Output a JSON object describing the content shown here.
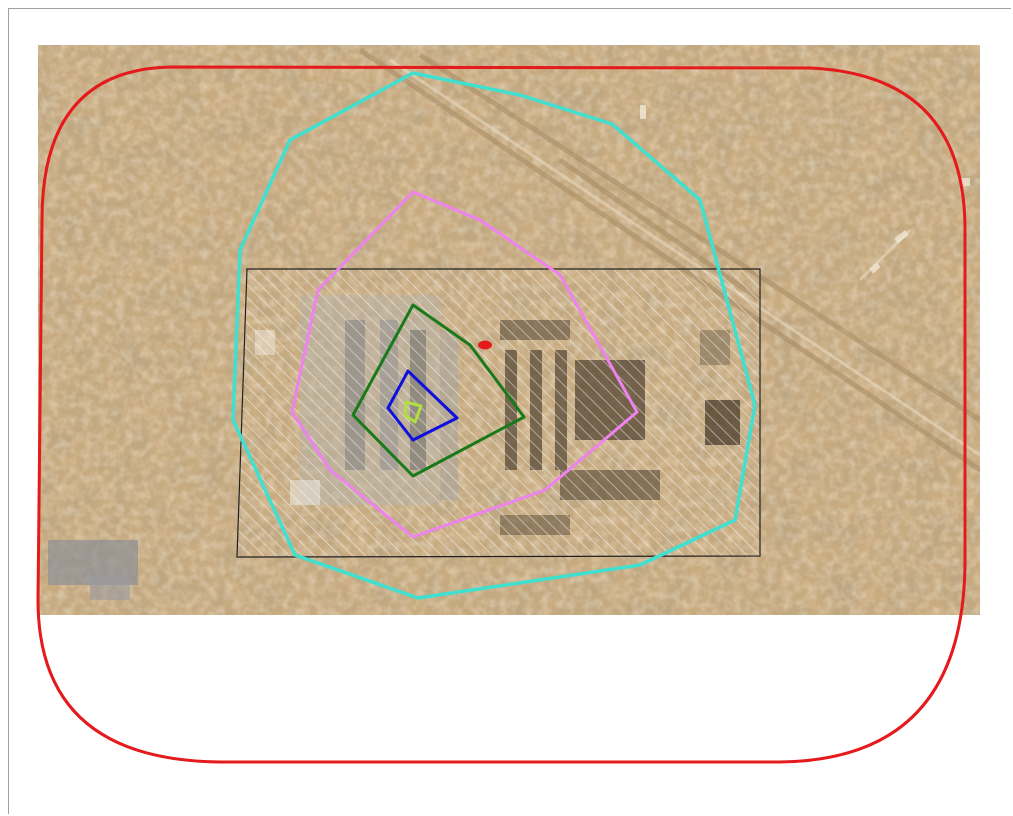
{
  "map": {
    "basemap": "satellite-imagery",
    "boundaries": [
      {
        "name": "outer-boundary",
        "color": "#e41a1c"
      },
      {
        "name": "cyan-zone",
        "color": "#40e0d0"
      },
      {
        "name": "pink-zone",
        "color": "#ee82ee"
      },
      {
        "name": "green-zone",
        "color": "#1a7a1a"
      },
      {
        "name": "blue-zone",
        "color": "#1010dd"
      },
      {
        "name": "yellow-zone",
        "color": "#b0e040"
      }
    ],
    "hatched_area": {
      "name": "hatched-rectangle",
      "stroke": "#222222",
      "hatch": "#ffffff"
    },
    "marker": {
      "name": "red-marker",
      "color": "#e41a1c"
    }
  }
}
